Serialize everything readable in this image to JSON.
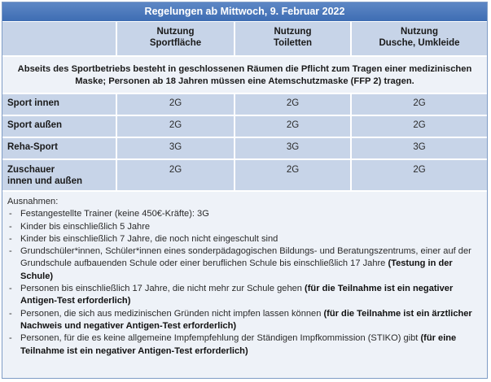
{
  "title": "Regelungen ab Mittwoch, 9. Februar 2022",
  "columns": [
    {
      "line1": "Nutzung",
      "line2": "Sportfläche"
    },
    {
      "line1": "Nutzung",
      "line2": "Toiletten"
    },
    {
      "line1": "Nutzung",
      "line2": "Dusche, Umkleide"
    }
  ],
  "notice": "Abseits des Sportbetriebs besteht in geschlossenen Räumen die Pflicht zum Tragen einer medizinischen Maske; Personen ab 18 Jahren müssen eine Atemschutzmaske (FFP 2) tragen.",
  "rows": [
    {
      "label_line1": "Sport innen",
      "label_line2": "",
      "values": [
        "2G",
        "2G",
        "2G"
      ]
    },
    {
      "label_line1": "Sport außen",
      "label_line2": "",
      "values": [
        "2G",
        "2G",
        "2G"
      ]
    },
    {
      "label_line1": "Reha-Sport",
      "label_line2": "",
      "values": [
        "3G",
        "3G",
        "3G"
      ]
    },
    {
      "label_line1": "Zuschauer",
      "label_line2": "innen und außen",
      "values": [
        "2G",
        "2G",
        "2G"
      ]
    }
  ],
  "exceptions": {
    "heading": "Ausnahmen:",
    "items": [
      {
        "text": "Festangestellte Trainer (keine 450€-Kräfte): 3G",
        "bold": ""
      },
      {
        "text": "Kinder bis einschließlich 5 Jahre",
        "bold": ""
      },
      {
        "text": "Kinder bis einschließlich 7 Jahre, die noch nicht eingeschult sind",
        "bold": ""
      },
      {
        "text": "Grundschüler*innen, Schüler*innen eines sonderpädagogischen Bildungs- und Beratungszentrums, einer auf der Grundschule aufbauenden Schule oder einer beruflichen Schule bis einschließlich 17 Jahre ",
        "bold": "(Testung in der Schule)"
      },
      {
        "text": "Personen bis einschließlich 17 Jahre, die nicht mehr zur Schule gehen ",
        "bold": "(für die Teilnahme ist ein negativer Antigen-Test erforderlich)"
      },
      {
        "text": "Personen, die sich aus medizinischen Gründen nicht impfen lassen können ",
        "bold": "(für die Teilnahme ist ein ärztlicher Nachweis  und negativer Antigen-Test erforderlich)"
      },
      {
        "text": "Personen, für die es keine allgemeine Impfempfehlung der Ständigen Impfkommission (STIKO) gibt ",
        "bold": "(für eine Teilnahme ist ein negativer Antigen-Test erforderlich)"
      }
    ]
  },
  "colors": {
    "title_bg": "#4a78bd",
    "cell_dark": "#c7d4e8",
    "cell_light": "#eef2f8",
    "border": "#7f9cc6"
  }
}
